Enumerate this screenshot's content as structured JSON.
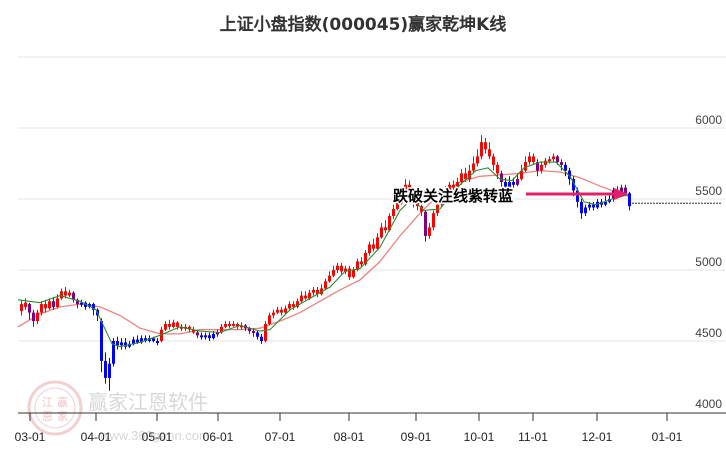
{
  "title": "上证小盘指数(000045)赢家乾坤K线",
  "colors": {
    "up": "#ff0000",
    "down": "#0000ff",
    "purple": "#800080",
    "ma_short": "#2e8b2e",
    "ma_long": "#f08080",
    "annotation_arrow": "#e0206a",
    "grid": "#e6e6e6"
  },
  "annotation": {
    "text": "跌破关注线紫转蓝"
  },
  "watermark": {
    "brand": "赢家江恩软件",
    "url": "www.360gann.com",
    "seal": [
      "江",
      "赢",
      "恩",
      "家"
    ]
  },
  "chart_data": {
    "type": "candlestick",
    "title": "上证小盘指数(000045)赢家乾坤K线",
    "xlabel": "",
    "ylabel": "",
    "ylim": [
      4000,
      6500
    ],
    "grid": true,
    "y_ticks": [
      "6000",
      "5500",
      "5000",
      "4500",
      "4000"
    ],
    "x_ticks": [
      "03-01",
      "04-01",
      "05-01",
      "06-01",
      "07-01",
      "08-01",
      "09-01",
      "10-01",
      "11-01",
      "12-01",
      "01-01"
    ],
    "x_tick_pos": [
      30,
      96,
      157,
      218,
      280,
      349,
      416,
      479,
      533,
      597,
      667
    ],
    "reference_line": 5470,
    "candles": [
      [
        20,
        4710,
        4760,
        4790,
        4680,
        "r"
      ],
      [
        24,
        4740,
        4770,
        4800,
        4720,
        "r"
      ],
      [
        28,
        4760,
        4700,
        4770,
        4650,
        "p"
      ],
      [
        32,
        4700,
        4640,
        4720,
        4600,
        "p"
      ],
      [
        36,
        4640,
        4700,
        4720,
        4620,
        "r"
      ],
      [
        40,
        4700,
        4760,
        4780,
        4680,
        "r"
      ],
      [
        44,
        4760,
        4730,
        4790,
        4700,
        "r"
      ],
      [
        48,
        4730,
        4780,
        4800,
        4720,
        "r"
      ],
      [
        52,
        4780,
        4740,
        4810,
        4720,
        "p"
      ],
      [
        56,
        4740,
        4800,
        4830,
        4730,
        "r"
      ],
      [
        60,
        4800,
        4850,
        4870,
        4790,
        "r"
      ],
      [
        64,
        4850,
        4820,
        4880,
        4800,
        "r"
      ],
      [
        68,
        4820,
        4840,
        4860,
        4810,
        "r"
      ],
      [
        72,
        4840,
        4790,
        4850,
        4770,
        "p"
      ],
      [
        76,
        4790,
        4760,
        4800,
        4730,
        "p"
      ],
      [
        80,
        4760,
        4770,
        4790,
        4740,
        "b"
      ],
      [
        84,
        4770,
        4740,
        4780,
        4720,
        "b"
      ],
      [
        88,
        4740,
        4760,
        4770,
        4730,
        "b"
      ],
      [
        92,
        4760,
        4720,
        4770,
        4680,
        "b"
      ],
      [
        96,
        4720,
        4680,
        4730,
        4640,
        "b"
      ],
      [
        100,
        4640,
        4360,
        4660,
        4280,
        "b"
      ],
      [
        104,
        4360,
        4240,
        4420,
        4200,
        "b"
      ],
      [
        108,
        4240,
        4340,
        4380,
        4150,
        "b"
      ],
      [
        112,
        4340,
        4500,
        4520,
        4320,
        "b"
      ],
      [
        116,
        4500,
        4470,
        4530,
        4440,
        "b"
      ],
      [
        120,
        4470,
        4490,
        4520,
        4440,
        "b"
      ],
      [
        124,
        4490,
        4460,
        4520,
        4440,
        "b"
      ],
      [
        128,
        4460,
        4480,
        4500,
        4450,
        "b"
      ],
      [
        132,
        4480,
        4510,
        4530,
        4470,
        "b"
      ],
      [
        136,
        4510,
        4490,
        4540,
        4480,
        "b"
      ],
      [
        140,
        4490,
        4520,
        4540,
        4480,
        "b"
      ],
      [
        144,
        4520,
        4500,
        4540,
        4490,
        "b"
      ],
      [
        148,
        4500,
        4520,
        4540,
        4490,
        "b"
      ],
      [
        152,
        4520,
        4500,
        4530,
        4490,
        "b"
      ],
      [
        156,
        4500,
        4490,
        4520,
        4470,
        "b"
      ],
      [
        160,
        4500,
        4580,
        4600,
        4490,
        "r"
      ],
      [
        164,
        4580,
        4620,
        4640,
        4570,
        "r"
      ],
      [
        168,
        4620,
        4600,
        4650,
        4580,
        "r"
      ],
      [
        172,
        4600,
        4630,
        4650,
        4590,
        "r"
      ],
      [
        176,
        4630,
        4600,
        4640,
        4580,
        "r"
      ],
      [
        180,
        4600,
        4590,
        4620,
        4570,
        "r"
      ],
      [
        184,
        4590,
        4600,
        4620,
        4570,
        "r"
      ],
      [
        188,
        4600,
        4580,
        4610,
        4560,
        "r"
      ],
      [
        192,
        4580,
        4560,
        4600,
        4550,
        "r"
      ],
      [
        196,
        4560,
        4540,
        4580,
        4520,
        "p"
      ],
      [
        200,
        4540,
        4530,
        4560,
        4510,
        "b"
      ],
      [
        204,
        4530,
        4540,
        4560,
        4510,
        "b"
      ],
      [
        208,
        4540,
        4520,
        4560,
        4500,
        "b"
      ],
      [
        212,
        4520,
        4550,
        4570,
        4510,
        "b"
      ],
      [
        216,
        4550,
        4560,
        4580,
        4530,
        "p"
      ],
      [
        220,
        4560,
        4600,
        4620,
        4550,
        "r"
      ],
      [
        224,
        4600,
        4620,
        4640,
        4590,
        "r"
      ],
      [
        228,
        4620,
        4610,
        4640,
        4590,
        "r"
      ],
      [
        232,
        4610,
        4620,
        4640,
        4600,
        "r"
      ],
      [
        236,
        4620,
        4600,
        4630,
        4580,
        "r"
      ],
      [
        240,
        4600,
        4610,
        4630,
        4580,
        "r"
      ],
      [
        244,
        4610,
        4590,
        4620,
        4570,
        "p"
      ],
      [
        248,
        4590,
        4570,
        4600,
        4550,
        "p"
      ],
      [
        252,
        4570,
        4560,
        4590,
        4530,
        "p"
      ],
      [
        256,
        4560,
        4530,
        4570,
        4510,
        "b"
      ],
      [
        260,
        4530,
        4500,
        4550,
        4480,
        "b"
      ],
      [
        264,
        4500,
        4620,
        4640,
        4490,
        "r"
      ],
      [
        268,
        4620,
        4680,
        4700,
        4610,
        "r"
      ],
      [
        272,
        4680,
        4700,
        4720,
        4660,
        "r"
      ],
      [
        276,
        4700,
        4720,
        4740,
        4690,
        "r"
      ],
      [
        280,
        4720,
        4700,
        4740,
        4680,
        "r"
      ],
      [
        284,
        4700,
        4730,
        4750,
        4690,
        "r"
      ],
      [
        288,
        4730,
        4760,
        4780,
        4720,
        "r"
      ],
      [
        292,
        4760,
        4740,
        4780,
        4720,
        "r"
      ],
      [
        296,
        4740,
        4780,
        4800,
        4730,
        "r"
      ],
      [
        300,
        4780,
        4820,
        4850,
        4770,
        "r"
      ],
      [
        304,
        4820,
        4800,
        4850,
        4790,
        "r"
      ],
      [
        308,
        4800,
        4840,
        4860,
        4790,
        "r"
      ],
      [
        312,
        4840,
        4860,
        4880,
        4820,
        "r"
      ],
      [
        316,
        4860,
        4830,
        4880,
        4810,
        "r"
      ],
      [
        320,
        4830,
        4870,
        4900,
        4820,
        "r"
      ],
      [
        324,
        4870,
        4920,
        4940,
        4860,
        "r"
      ],
      [
        328,
        4920,
        4960,
        4990,
        4910,
        "r"
      ],
      [
        332,
        4960,
        5000,
        5030,
        4950,
        "r"
      ],
      [
        336,
        5000,
        5030,
        5050,
        4980,
        "r"
      ],
      [
        340,
        5030,
        4990,
        5050,
        4970,
        "r"
      ],
      [
        344,
        4990,
        5010,
        5030,
        4970,
        "r"
      ],
      [
        348,
        5010,
        4950,
        5030,
        4930,
        "r"
      ],
      [
        352,
        4950,
        5000,
        5020,
        4940,
        "r"
      ],
      [
        356,
        5000,
        5060,
        5080,
        4990,
        "r"
      ],
      [
        360,
        5060,
        5040,
        5090,
        5020,
        "r"
      ],
      [
        364,
        5040,
        5120,
        5140,
        5030,
        "r"
      ],
      [
        368,
        5120,
        5180,
        5200,
        5100,
        "r"
      ],
      [
        372,
        5180,
        5150,
        5220,
        5130,
        "r"
      ],
      [
        376,
        5150,
        5230,
        5260,
        5140,
        "r"
      ],
      [
        380,
        5230,
        5300,
        5330,
        5220,
        "r"
      ],
      [
        384,
        5300,
        5280,
        5350,
        5260,
        "r"
      ],
      [
        388,
        5280,
        5380,
        5400,
        5270,
        "r"
      ],
      [
        392,
        5380,
        5430,
        5460,
        5360,
        "r"
      ],
      [
        396,
        5430,
        5470,
        5500,
        5420,
        "r"
      ],
      [
        400,
        5470,
        5520,
        5560,
        5460,
        "r"
      ],
      [
        404,
        5520,
        5600,
        5640,
        5500,
        "r"
      ],
      [
        408,
        5600,
        5560,
        5630,
        5500,
        "r"
      ],
      [
        412,
        5560,
        5480,
        5580,
        5440,
        "r"
      ],
      [
        416,
        5480,
        5450,
        5500,
        5420,
        "r"
      ],
      [
        420,
        5450,
        5410,
        5460,
        5380,
        "r"
      ],
      [
        424,
        5410,
        5240,
        5420,
        5200,
        "p"
      ],
      [
        428,
        5240,
        5300,
        5330,
        5220,
        "r"
      ],
      [
        432,
        5300,
        5400,
        5420,
        5280,
        "r"
      ],
      [
        436,
        5400,
        5460,
        5480,
        5380,
        "r"
      ],
      [
        440,
        5460,
        5520,
        5540,
        5440,
        "r"
      ],
      [
        444,
        5520,
        5560,
        5590,
        5500,
        "r"
      ],
      [
        448,
        5560,
        5600,
        5620,
        5540,
        "r"
      ],
      [
        452,
        5600,
        5580,
        5630,
        5560,
        "r"
      ],
      [
        456,
        5580,
        5620,
        5650,
        5560,
        "r"
      ],
      [
        460,
        5620,
        5680,
        5710,
        5600,
        "r"
      ],
      [
        464,
        5680,
        5640,
        5720,
        5620,
        "r"
      ],
      [
        468,
        5640,
        5700,
        5740,
        5620,
        "r"
      ],
      [
        472,
        5700,
        5750,
        5800,
        5680,
        "r"
      ],
      [
        476,
        5750,
        5800,
        5850,
        5730,
        "r"
      ],
      [
        480,
        5800,
        5900,
        5950,
        5780,
        "r"
      ],
      [
        484,
        5900,
        5850,
        5930,
        5820,
        "r"
      ],
      [
        488,
        5850,
        5800,
        5900,
        5780,
        "r"
      ],
      [
        492,
        5800,
        5740,
        5820,
        5700,
        "r"
      ],
      [
        496,
        5740,
        5680,
        5760,
        5640,
        "r"
      ],
      [
        500,
        5680,
        5620,
        5700,
        5580,
        "p"
      ],
      [
        504,
        5620,
        5580,
        5650,
        5560,
        "b"
      ],
      [
        508,
        5580,
        5620,
        5660,
        5560,
        "b"
      ],
      [
        512,
        5620,
        5600,
        5650,
        5580,
        "b"
      ],
      [
        516,
        5600,
        5640,
        5680,
        5590,
        "p"
      ],
      [
        520,
        5640,
        5700,
        5740,
        5630,
        "r"
      ],
      [
        524,
        5700,
        5760,
        5800,
        5690,
        "r"
      ],
      [
        528,
        5760,
        5800,
        5830,
        5740,
        "r"
      ],
      [
        532,
        5800,
        5760,
        5820,
        5740,
        "r"
      ],
      [
        536,
        5760,
        5700,
        5780,
        5660,
        "p"
      ],
      [
        540,
        5700,
        5740,
        5760,
        5680,
        "r"
      ],
      [
        544,
        5740,
        5770,
        5790,
        5720,
        "r"
      ],
      [
        548,
        5770,
        5780,
        5800,
        5750,
        "r"
      ],
      [
        552,
        5780,
        5800,
        5820,
        5760,
        "r"
      ],
      [
        556,
        5800,
        5760,
        5810,
        5740,
        "p"
      ],
      [
        560,
        5760,
        5740,
        5780,
        5700,
        "p"
      ],
      [
        564,
        5740,
        5700,
        5760,
        5660,
        "b"
      ],
      [
        568,
        5700,
        5640,
        5720,
        5600,
        "b"
      ],
      [
        572,
        5640,
        5560,
        5660,
        5520,
        "b"
      ],
      [
        576,
        5560,
        5480,
        5580,
        5440,
        "b"
      ],
      [
        580,
        5480,
        5400,
        5500,
        5360,
        "b"
      ],
      [
        584,
        5400,
        5440,
        5460,
        5380,
        "b"
      ],
      [
        588,
        5440,
        5460,
        5480,
        5420,
        "b"
      ],
      [
        592,
        5460,
        5440,
        5480,
        5420,
        "b"
      ],
      [
        596,
        5440,
        5480,
        5500,
        5430,
        "b"
      ],
      [
        600,
        5480,
        5460,
        5500,
        5440,
        "b"
      ],
      [
        604,
        5460,
        5480,
        5520,
        5450,
        "b"
      ],
      [
        608,
        5480,
        5500,
        5530,
        5470,
        "b"
      ],
      [
        612,
        5500,
        5560,
        5580,
        5480,
        "p"
      ],
      [
        616,
        5560,
        5540,
        5590,
        5520,
        "p"
      ],
      [
        620,
        5540,
        5580,
        5600,
        5520,
        "p"
      ],
      [
        624,
        5580,
        5540,
        5600,
        5520,
        "p"
      ],
      [
        628,
        5540,
        5450,
        5550,
        5420,
        "b"
      ]
    ],
    "ma_short": [
      [
        18,
        4790
      ],
      [
        40,
        4770
      ],
      [
        60,
        4820
      ],
      [
        80,
        4780
      ],
      [
        96,
        4720
      ],
      [
        104,
        4600
      ],
      [
        112,
        4480
      ],
      [
        120,
        4460
      ],
      [
        140,
        4490
      ],
      [
        160,
        4540
      ],
      [
        180,
        4600
      ],
      [
        200,
        4570
      ],
      [
        220,
        4560
      ],
      [
        240,
        4610
      ],
      [
        260,
        4570
      ],
      [
        270,
        4580
      ],
      [
        290,
        4720
      ],
      [
        310,
        4800
      ],
      [
        330,
        4880
      ],
      [
        345,
        4990
      ],
      [
        360,
        5010
      ],
      [
        380,
        5160
      ],
      [
        400,
        5420
      ],
      [
        412,
        5500
      ],
      [
        424,
        5420
      ],
      [
        440,
        5430
      ],
      [
        460,
        5600
      ],
      [
        476,
        5700
      ],
      [
        488,
        5720
      ],
      [
        500,
        5640
      ],
      [
        512,
        5630
      ],
      [
        524,
        5720
      ],
      [
        540,
        5760
      ],
      [
        556,
        5760
      ],
      [
        570,
        5660
      ],
      [
        584,
        5480
      ],
      [
        596,
        5460
      ],
      [
        612,
        5500
      ],
      [
        628,
        5530
      ]
    ],
    "ma_long": [
      [
        18,
        4600
      ],
      [
        40,
        4690
      ],
      [
        60,
        4740
      ],
      [
        80,
        4760
      ],
      [
        100,
        4740
      ],
      [
        120,
        4680
      ],
      [
        140,
        4590
      ],
      [
        160,
        4550
      ],
      [
        180,
        4550
      ],
      [
        200,
        4580
      ],
      [
        220,
        4580
      ],
      [
        240,
        4580
      ],
      [
        260,
        4590
      ],
      [
        280,
        4640
      ],
      [
        300,
        4700
      ],
      [
        320,
        4780
      ],
      [
        340,
        4860
      ],
      [
        360,
        4930
      ],
      [
        380,
        5060
      ],
      [
        400,
        5240
      ],
      [
        420,
        5400
      ],
      [
        440,
        5540
      ],
      [
        460,
        5620
      ],
      [
        480,
        5660
      ],
      [
        500,
        5670
      ],
      [
        520,
        5680
      ],
      [
        540,
        5700
      ],
      [
        560,
        5690
      ],
      [
        580,
        5650
      ],
      [
        600,
        5590
      ],
      [
        620,
        5540
      ],
      [
        628,
        5520
      ]
    ]
  }
}
